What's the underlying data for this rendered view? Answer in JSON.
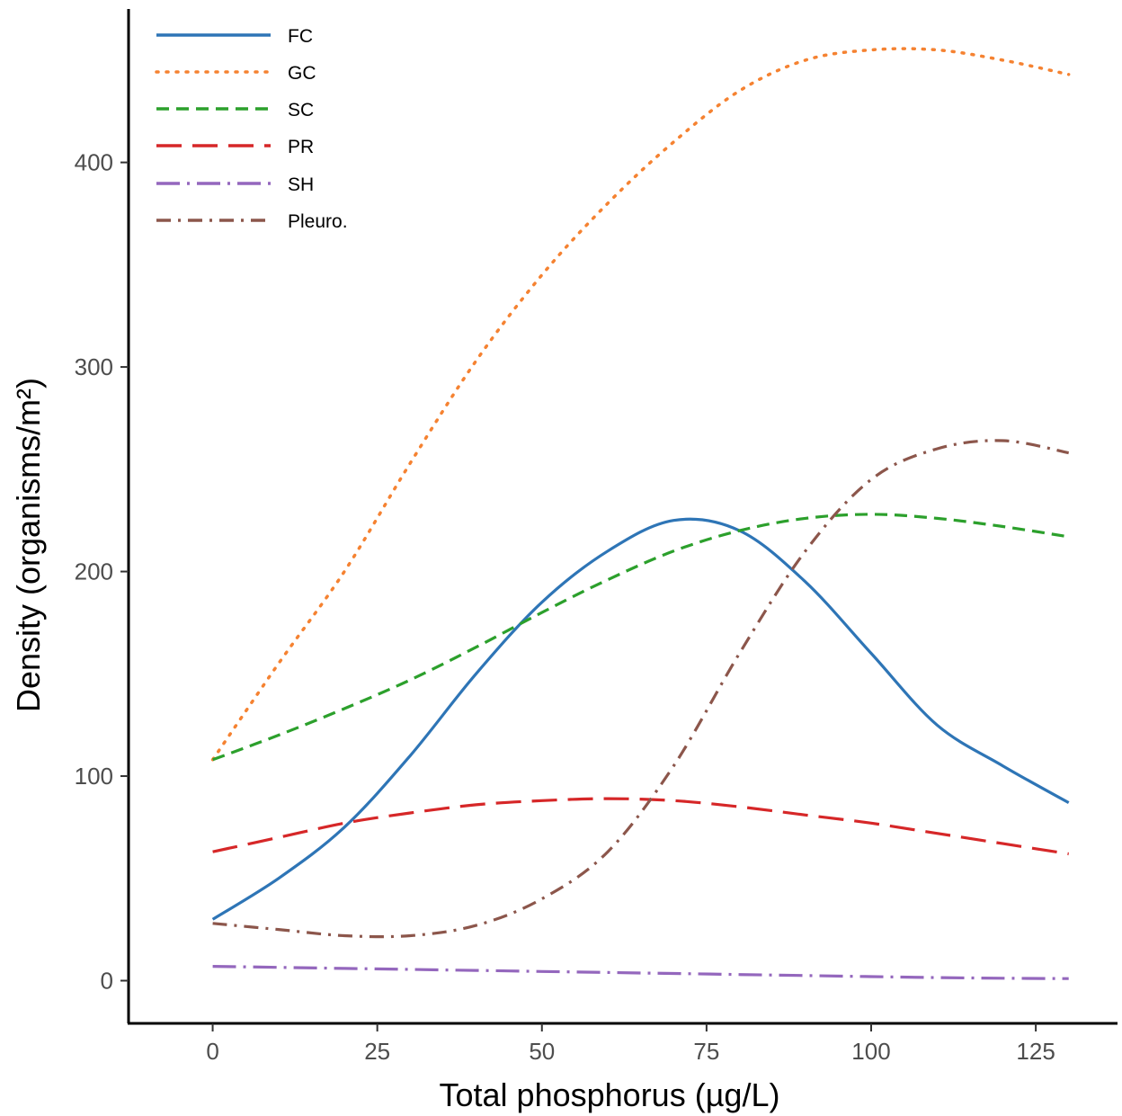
{
  "chart_data": {
    "type": "line",
    "xlabel": "Total phosphorus (µg/L)",
    "ylabel": "Density (organisms/m²)",
    "xlim": [
      -12.5,
      137
    ],
    "ylim": [
      -20,
      475
    ],
    "x_ticks": [
      0,
      25,
      50,
      75,
      100,
      125
    ],
    "y_ticks": [
      0,
      100,
      200,
      300,
      400
    ],
    "x_tick_labels": [
      "0",
      "25",
      "50",
      "75",
      "100",
      "125"
    ],
    "y_tick_labels": [
      "0",
      "100",
      "200",
      "300",
      "400"
    ],
    "grid": false,
    "legend_position": "top-left",
    "x": [
      0,
      10,
      20,
      30,
      40,
      50,
      60,
      70,
      80,
      90,
      100,
      110,
      120,
      130
    ],
    "series": [
      {
        "name": "FC",
        "color": "#2e75b6",
        "dash": "solid",
        "values": [
          30,
          50,
          75,
          110,
          150,
          185,
          210,
          225,
          220,
          195,
          160,
          125,
          105,
          87
        ]
      },
      {
        "name": "GC",
        "color": "#f58231",
        "dash": "dotted",
        "values": [
          108,
          155,
          200,
          253,
          303,
          345,
          380,
          410,
          435,
          450,
          455,
          455,
          450,
          443
        ]
      },
      {
        "name": "SC",
        "color": "#2ca02c",
        "dash": "short-dash",
        "values": [
          108,
          120,
          133,
          147,
          163,
          180,
          196,
          210,
          220,
          226,
          228,
          226,
          222,
          217
        ]
      },
      {
        "name": "PR",
        "color": "#d62728",
        "dash": "long-dash",
        "values": [
          63,
          70,
          77,
          82,
          86,
          88,
          89,
          88,
          85,
          81,
          77,
          72,
          67,
          62
        ]
      },
      {
        "name": "SH",
        "color": "#9467bd",
        "dash": "long-dash-dot",
        "values": [
          7,
          6.5,
          6,
          5.5,
          5,
          4.5,
          4,
          3.5,
          3,
          2.5,
          2,
          1.5,
          1.2,
          1
        ]
      },
      {
        "name": "Pleuro.",
        "color": "#8c564b",
        "dash": "dash-dot",
        "values": [
          28,
          25,
          22,
          22,
          27,
          40,
          63,
          105,
          160,
          210,
          245,
          260,
          264,
          258
        ]
      }
    ]
  }
}
